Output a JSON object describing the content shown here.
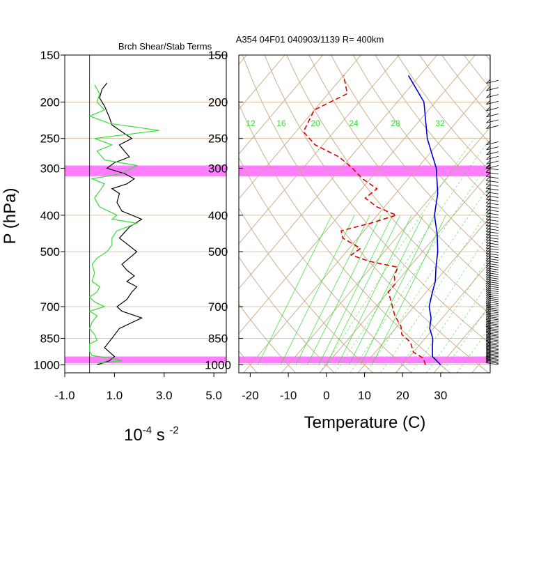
{
  "title_left": "Brch Shear/Stab Terms",
  "title_right": "A354 04F01 040903/1139 R= 400km",
  "ylabel": "P (hPa)",
  "left_xlabel_base": "10",
  "left_xlabel_exp1": "-4",
  "left_xlabel_mid": " s ",
  "left_xlabel_exp2": "-2",
  "right_xlabel": "Temperature (C)",
  "colors": {
    "grid": "#d2b48c",
    "skewt": "#c8a882",
    "mixing": "#33dd33",
    "highlight": "#ff66ff",
    "temp": "#0000cc",
    "dew": "#dd0000",
    "bulk": "#000000",
    "stab": "#33dd33",
    "wind": "#000000"
  },
  "chart_data": [
    {
      "type": "line",
      "name_hint": "left-panel",
      "xlim": [
        -1.0,
        5.5
      ],
      "ylim_pressure": [
        1050,
        150
      ],
      "x_ticks": [
        "-1.0",
        "1.0",
        "3.0",
        "5.0"
      ],
      "x_tick_values": [
        -1,
        1,
        3,
        5
      ],
      "pressure_ticks": [
        "150",
        "200",
        "250",
        "300",
        "400",
        "500",
        "700",
        "850",
        "1000"
      ],
      "pressure_tick_values": [
        150,
        200,
        250,
        300,
        400,
        500,
        700,
        850,
        1000
      ],
      "highlight_bands_hpa": [
        [
          295,
          315
        ],
        [
          950,
          990
        ]
      ],
      "series": [
        {
          "key": "black",
          "points": [
            [
              0.3,
              1000
            ],
            [
              0.8,
              975
            ],
            [
              1.0,
              950
            ],
            [
              0.6,
              900
            ],
            [
              0.9,
              850
            ],
            [
              1.2,
              800
            ],
            [
              2.1,
              750
            ],
            [
              1.3,
              720
            ],
            [
              1.1,
              700
            ],
            [
              1.5,
              670
            ],
            [
              1.7,
              640
            ],
            [
              1.9,
              620
            ],
            [
              1.5,
              600
            ],
            [
              1.8,
              580
            ],
            [
              1.5,
              560
            ],
            [
              1.3,
              540
            ],
            [
              1.6,
              520
            ],
            [
              1.9,
              500
            ],
            [
              1.2,
              460
            ],
            [
              1.6,
              430
            ],
            [
              2.1,
              410
            ],
            [
              1.3,
              390
            ],
            [
              1.1,
              370
            ],
            [
              1.2,
              350
            ],
            [
              0.9,
              340
            ],
            [
              1.5,
              330
            ],
            [
              1.8,
              320
            ],
            [
              1.4,
              310
            ],
            [
              0.7,
              300
            ],
            [
              1.0,
              290
            ],
            [
              1.6,
              280
            ],
            [
              1.4,
              270
            ],
            [
              1.2,
              260
            ],
            [
              1.7,
              250
            ],
            [
              1.3,
              240
            ],
            [
              0.9,
              230
            ],
            [
              0.8,
              220
            ],
            [
              0.6,
              205
            ],
            [
              0.4,
              195
            ],
            [
              0.5,
              185
            ],
            [
              0.7,
              178
            ]
          ]
        },
        {
          "key": "green",
          "points": [
            [
              0.3,
              990
            ],
            [
              1.3,
              975
            ],
            [
              0.9,
              960
            ],
            [
              0.1,
              945
            ],
            [
              0.0,
              920
            ],
            [
              0.0,
              880
            ],
            [
              0.3,
              860
            ],
            [
              0.2,
              830
            ],
            [
              0.0,
              800
            ],
            [
              0.1,
              770
            ],
            [
              0.3,
              740
            ],
            [
              0.0,
              720
            ],
            [
              0.6,
              700
            ],
            [
              0.2,
              680
            ],
            [
              0.0,
              660
            ],
            [
              0.3,
              640
            ],
            [
              0.4,
              620
            ],
            [
              0.1,
              600
            ],
            [
              0.2,
              570
            ],
            [
              0.1,
              540
            ],
            [
              0.3,
              520
            ],
            [
              0.7,
              500
            ],
            [
              0.9,
              480
            ],
            [
              0.9,
              460
            ],
            [
              1.1,
              440
            ],
            [
              1.9,
              420
            ],
            [
              0.9,
              410
            ],
            [
              1.1,
              400
            ],
            [
              0.4,
              380
            ],
            [
              0.2,
              360
            ],
            [
              0.4,
              345
            ],
            [
              0.6,
              330
            ],
            [
              0.1,
              320
            ],
            [
              1.3,
              310
            ],
            [
              1.9,
              295
            ],
            [
              0.6,
              285
            ],
            [
              0.3,
              270
            ],
            [
              0.9,
              260
            ],
            [
              0.2,
              250
            ],
            [
              2.8,
              238
            ],
            [
              0.8,
              228
            ],
            [
              0.0,
              218
            ],
            [
              0.6,
              210
            ],
            [
              0.3,
              200
            ],
            [
              0.4,
              190
            ],
            [
              0.2,
              180
            ]
          ]
        }
      ]
    },
    {
      "type": "line",
      "name_hint": "skew-t",
      "xlim": [
        -23,
        43
      ],
      "ylim_pressure": [
        1050,
        150
      ],
      "x_ticks": [
        "-20",
        "-10",
        "0",
        "10",
        "20",
        "30"
      ],
      "x_tick_values": [
        -20,
        -10,
        0,
        10,
        20,
        30
      ],
      "pressure_ticks": [
        "150",
        "200",
        "250",
        "300",
        "400",
        "500",
        "700",
        "850",
        "1000"
      ],
      "mixing_ratio_labels": [
        "12",
        "16",
        "20",
        "24",
        "28",
        "32"
      ],
      "series": [
        {
          "key": "temperature",
          "points": [
            [
              30,
              1000
            ],
            [
              26,
              950
            ],
            [
              24,
              900
            ],
            [
              22,
              850
            ],
            [
              19,
              800
            ],
            [
              17,
              750
            ],
            [
              14,
              700
            ],
            [
              12,
              650
            ],
            [
              10,
              600
            ],
            [
              7,
              550
            ],
            [
              4,
              500
            ],
            [
              0,
              450
            ],
            [
              -5,
              400
            ],
            [
              -9,
              350
            ],
            [
              -15,
              300
            ],
            [
              -24,
              250
            ],
            [
              -33,
              200
            ],
            [
              -43,
              170
            ]
          ]
        },
        {
          "key": "dewpoint",
          "points": [
            [
              26,
              1000
            ],
            [
              24,
              960
            ],
            [
              20,
              925
            ],
            [
              17,
              870
            ],
            [
              13,
              830
            ],
            [
              11,
              790
            ],
            [
              7,
              740
            ],
            [
              5,
              710
            ],
            [
              3,
              680
            ],
            [
              0,
              640
            ],
            [
              0,
              610
            ],
            [
              -2,
              580
            ],
            [
              -3,
              550
            ],
            [
              -12,
              530
            ],
            [
              -18,
              510
            ],
            [
              -17,
              490
            ],
            [
              -24,
              460
            ],
            [
              -26,
              440
            ],
            [
              -20,
              420
            ],
            [
              -15,
              400
            ],
            [
              -22,
              380
            ],
            [
              -27,
              360
            ],
            [
              -26,
              340
            ],
            [
              -32,
              320
            ],
            [
              -37,
              300
            ],
            [
              -43,
              280
            ],
            [
              -52,
              260
            ],
            [
              -58,
              240
            ],
            [
              -60,
              210
            ],
            [
              -55,
              190
            ],
            [
              -60,
              170
            ]
          ]
        }
      ]
    }
  ]
}
